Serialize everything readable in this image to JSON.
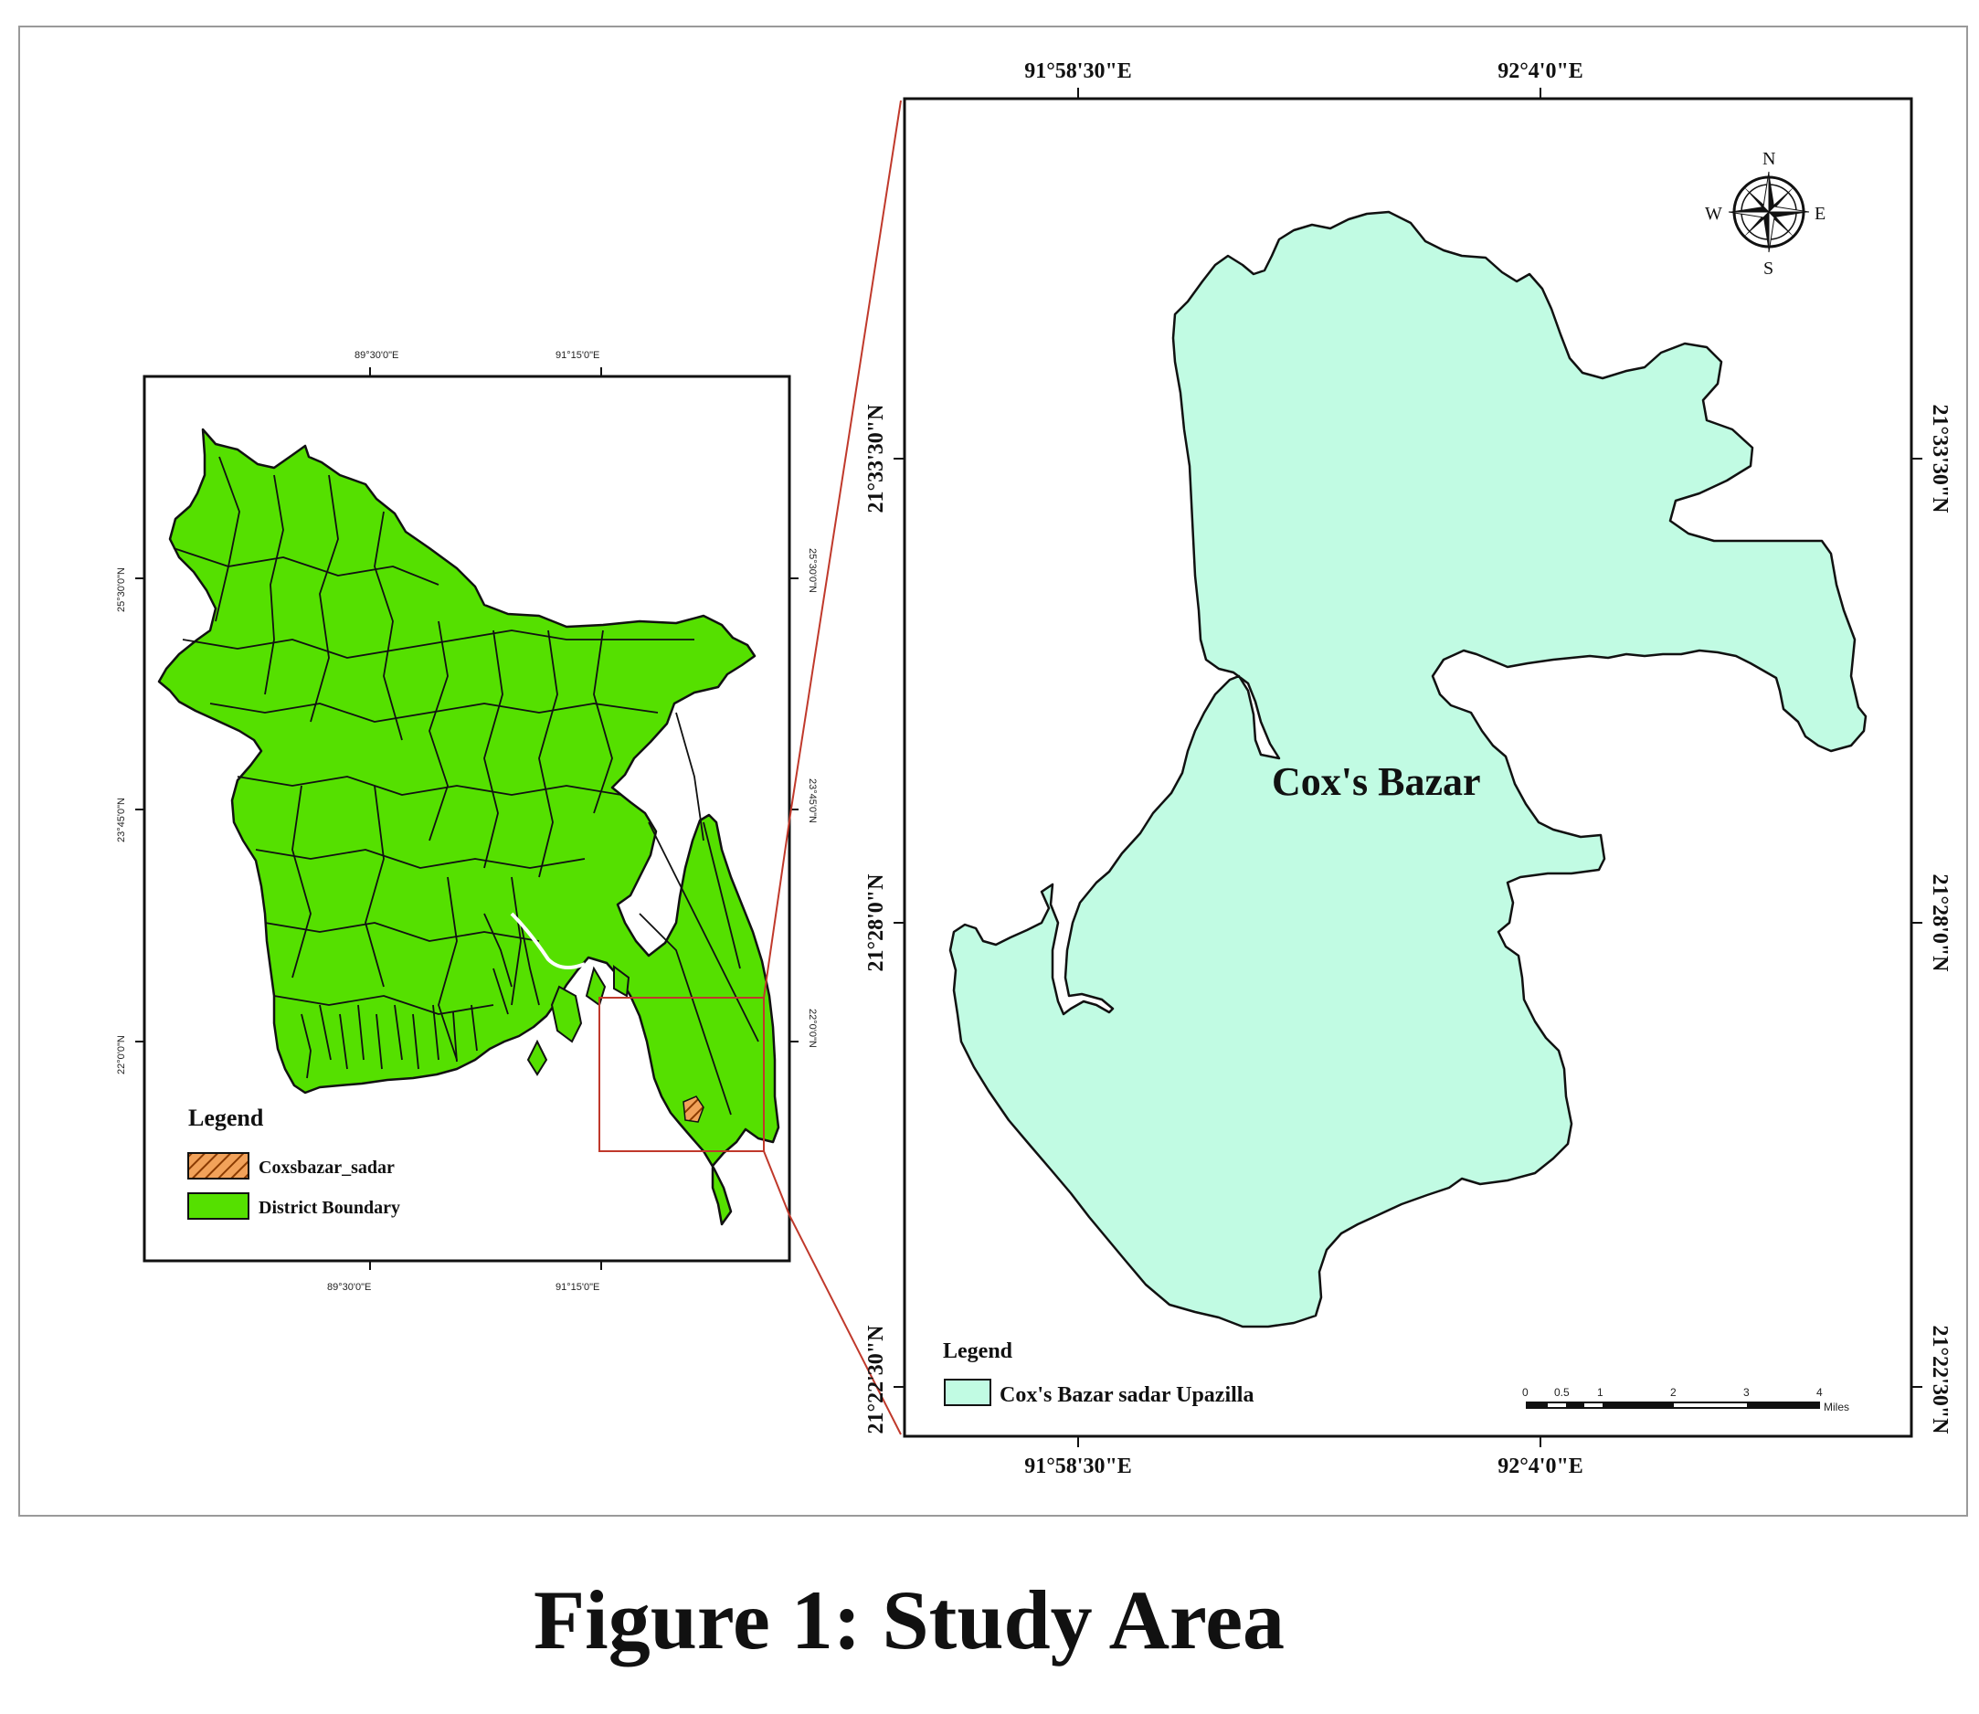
{
  "caption": "Figure 1: Study Area",
  "overview_map": {
    "top_x_labels": [
      "89°30'0\"E",
      "91°15'0\"E"
    ],
    "bottom_x_labels": [
      "89°30'0\"E",
      "91°15'0\"E"
    ],
    "left_y_labels": [
      "25°30'0\"N",
      "23°45'0\"N",
      "22°0'0\"N"
    ],
    "right_y_labels": [
      "25°30'0\"N",
      "23°45'0\"N",
      "22°0'0\"N"
    ],
    "legend": {
      "title": "Legend",
      "items": [
        {
          "label": "Coxsbazar_sadar",
          "color": "#e07b22",
          "pattern": "hatched"
        },
        {
          "label": "District Boundary",
          "color": "#55e000",
          "pattern": "solid"
        }
      ]
    },
    "extent_box_color": "#c0392b",
    "fill_color": "#55e000"
  },
  "detail_map": {
    "top_x_labels": [
      "91°58'30\"E",
      "92°4'0\"E"
    ],
    "bottom_x_labels": [
      "91°58'30\"E",
      "92°4'0\"E"
    ],
    "left_y_labels": [
      "21°33'30\"N",
      "21°28'0\"N",
      "21°22'30\"N"
    ],
    "right_y_labels": [
      "21°33'30\"N",
      "21°28'0\"N",
      "21°22'30\"N"
    ],
    "place_label": "Cox's Bazar",
    "fill_color": "#c1fbe3",
    "legend": {
      "title": "Legend",
      "items": [
        {
          "label": "Cox's Bazar sadar Upazilla",
          "color": "#c1fbe3"
        }
      ]
    },
    "compass": {
      "n": "N",
      "s": "S",
      "e": "E",
      "w": "W"
    },
    "scale_bar": {
      "ticks": [
        "0",
        "0.5",
        "1",
        "2",
        "3",
        "4"
      ],
      "unit": "Miles"
    }
  }
}
